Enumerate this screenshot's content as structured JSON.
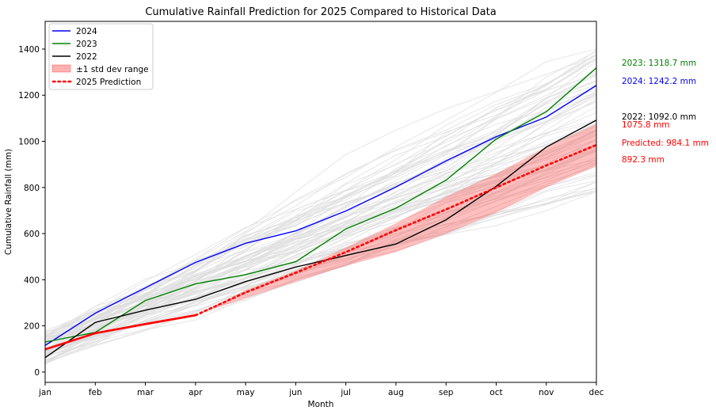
{
  "chart_data": {
    "type": "line",
    "title": "Cumulative Rainfall Prediction for 2025 Compared to Historical Data",
    "xlabel": "Month",
    "ylabel": "Cumulative Rainfall (mm)",
    "categories": [
      "jan",
      "feb",
      "mar",
      "apr",
      "may",
      "jun",
      "jul",
      "aug",
      "sep",
      "oct",
      "nov",
      "dec"
    ],
    "yticks": [
      0,
      200,
      400,
      600,
      800,
      1000,
      1200,
      1400
    ],
    "ylim": [
      -45,
      1520
    ],
    "grid": false,
    "legend_position": "top-left",
    "series": [
      {
        "name": "2024",
        "color": "#0000ff",
        "values": [
          115,
          255,
          365,
          475,
          558,
          612,
          698,
          802,
          915,
          1020,
          1105,
          1242.2
        ]
      },
      {
        "name": "2023",
        "color": "#008000",
        "values": [
          130,
          172,
          310,
          382,
          422,
          478,
          620,
          710,
          832,
          1010,
          1128,
          1318.7
        ]
      },
      {
        "name": "2022",
        "color": "#000000",
        "values": [
          62,
          215,
          268,
          315,
          392,
          455,
          505,
          555,
          660,
          805,
          975,
          1092.0
        ]
      }
    ],
    "observed_2025": {
      "color": "#ff0000",
      "values": [
        98,
        168,
        208,
        246
      ]
    },
    "prediction": {
      "name": "2025 Prediction",
      "color": "#ff0000",
      "values": [
        null,
        null,
        null,
        246,
        345,
        430,
        520,
        615,
        705,
        800,
        895,
        984.1
      ]
    },
    "std_band": {
      "name": "±1 std dev range",
      "color": "#ff0000",
      "lower": [
        null,
        null,
        null,
        246,
        320,
        392,
        460,
        520,
        600,
        690,
        800,
        892.3
      ],
      "upper": [
        null,
        null,
        null,
        246,
        355,
        440,
        540,
        645,
        760,
        860,
        975,
        1075.8
      ]
    },
    "legend": [
      "2024",
      "2023",
      "2022",
      "±1 std dev range",
      "2025 Prediction"
    ],
    "annotations": [
      {
        "text": "2023: 1318.7 mm",
        "color": "#008000",
        "y": 1318.7
      },
      {
        "text": "2024: 1242.2 mm",
        "color": "#0000ff",
        "y": 1242.2
      },
      {
        "text": "2022: 1092.0 mm",
        "color": "#000000",
        "y": 1092.0
      },
      {
        "text": "1075.8 mm",
        "color": "#ff0000",
        "y": 1075.8
      },
      {
        "text": "Predicted: 984.1 mm",
        "color": "#ff0000",
        "y": 984.1
      },
      {
        "text": "892.3 mm",
        "color": "#ff0000",
        "y": 892.3
      }
    ],
    "historical_background": {
      "color": "#dddddd",
      "note_count": 80
    }
  }
}
